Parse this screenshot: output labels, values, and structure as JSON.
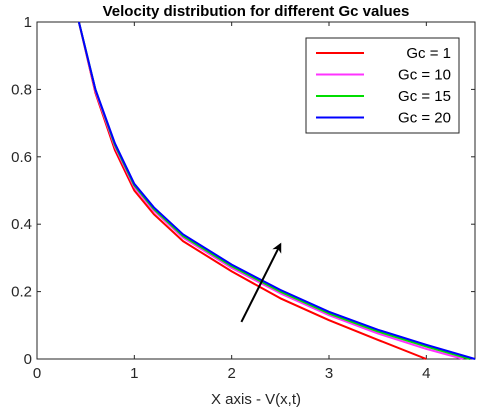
{
  "chart_data": {
    "type": "line",
    "title": "Velocity distribution for different Gc values",
    "xlabel": "X axis - V(x,t)",
    "ylabel": "",
    "xlim": [
      0,
      4.5
    ],
    "ylim": [
      0,
      1
    ],
    "xticks": [
      "0",
      "1",
      "2",
      "3",
      "4"
    ],
    "yticks": [
      "0",
      "0.2",
      "0.4",
      "0.6",
      "0.8",
      "1"
    ],
    "grid": false,
    "legend_position": "top-right",
    "series": [
      {
        "name": "Gc = 1",
        "color": "#ff0000",
        "x": [
          0.43,
          0.6,
          0.8,
          1.0,
          1.2,
          1.5,
          2.0,
          2.5,
          3.0,
          3.5,
          4.0
        ],
        "y": [
          1.0,
          0.79,
          0.62,
          0.5,
          0.43,
          0.35,
          0.26,
          0.18,
          0.115,
          0.057,
          0.0
        ]
      },
      {
        "name": "Gc = 10",
        "color": "#ff33ff",
        "x": [
          0.43,
          0.6,
          0.8,
          1.0,
          1.2,
          1.5,
          2.0,
          2.5,
          3.0,
          3.5,
          4.0,
          4.38
        ],
        "y": [
          1.0,
          0.795,
          0.63,
          0.51,
          0.44,
          0.36,
          0.27,
          0.195,
          0.13,
          0.076,
          0.03,
          0.0
        ]
      },
      {
        "name": "Gc = 15",
        "color": "#00dd00",
        "x": [
          0.43,
          0.6,
          0.8,
          1.0,
          1.2,
          1.5,
          2.0,
          2.5,
          3.0,
          3.5,
          4.0,
          4.45
        ],
        "y": [
          1.0,
          0.8,
          0.635,
          0.515,
          0.445,
          0.365,
          0.275,
          0.2,
          0.135,
          0.082,
          0.037,
          0.0
        ]
      },
      {
        "name": "Gc = 20",
        "color": "#0000ff",
        "x": [
          0.43,
          0.6,
          0.8,
          1.0,
          1.2,
          1.5,
          2.0,
          2.5,
          3.0,
          3.5,
          4.0,
          4.5
        ],
        "y": [
          1.0,
          0.8,
          0.64,
          0.52,
          0.45,
          0.37,
          0.28,
          0.205,
          0.14,
          0.087,
          0.042,
          0.0
        ]
      }
    ],
    "annotations": [
      {
        "type": "arrow",
        "from": [
          2.1,
          0.11
        ],
        "to": [
          2.5,
          0.34
        ],
        "color": "#000000"
      }
    ]
  }
}
